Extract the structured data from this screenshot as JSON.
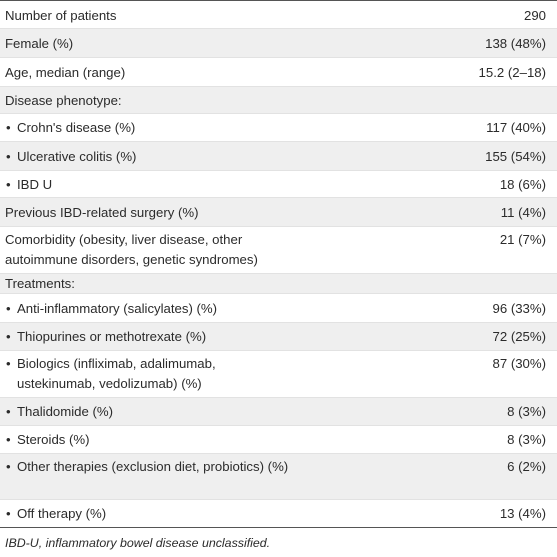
{
  "table": {
    "rows": [
      {
        "label": "Number of patients",
        "value": "290"
      },
      {
        "label": "Female (%)",
        "value": "138 (48%)"
      },
      {
        "label": "Age, median (range)",
        "value": "15.2 (2–18)"
      },
      {
        "label": "Disease phenotype:",
        "value": ""
      },
      {
        "label": "Crohn's disease (%)",
        "value": "117 (40%)"
      },
      {
        "label": "Ulcerative colitis (%)",
        "value": "155 (54%)"
      },
      {
        "label": "IBD U",
        "value": "18 (6%)"
      },
      {
        "label": "Previous IBD-related surgery (%)",
        "value": "11 (4%)"
      },
      {
        "label": "Comorbidity (obesity, liver disease, other autoimmune disorders, genetic syndromes)",
        "value": "21 (7%)"
      },
      {
        "label": "Treatments:",
        "value": ""
      },
      {
        "label": "Anti-inflammatory (salicylates) (%)",
        "value": "96 (33%)"
      },
      {
        "label": "Thiopurines or methotrexate (%)",
        "value": "72 (25%)"
      },
      {
        "label": "Biologics (infliximab, adalimumab, ustekinumab, vedolizumab) (%)",
        "value": "87 (30%)"
      },
      {
        "label": "Thalidomide (%)",
        "value": "8 (3%)"
      },
      {
        "label": "Steroids (%)",
        "value": "8 (3%)"
      },
      {
        "label": "Other therapies (exclusion diet, probiotics) (%)",
        "value": "6 (2%)"
      },
      {
        "label": "Off therapy (%)",
        "value": "13 (4%)"
      }
    ],
    "bullet_glyph": "•"
  },
  "footnote": "IBD-U, inflammatory bowel disease unclassified."
}
